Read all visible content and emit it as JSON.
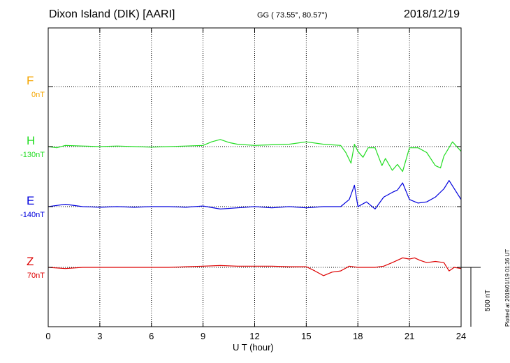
{
  "header": {
    "station": "Dixon Island (DIK)  [AARI]",
    "coords": "GG ( 73.55°,  80.57°)",
    "date": "2018/12/19"
  },
  "footer": {
    "xlabel": "U T (hour)",
    "plotted": "Plotted at 2019/01/19 01:36 UT",
    "scale_label": "500 nT"
  },
  "chart_data": {
    "type": "line",
    "xlabel": "U T (hour)",
    "xlim": [
      0,
      24
    ],
    "xticks": [
      0,
      3,
      6,
      9,
      12,
      15,
      18,
      21,
      24
    ],
    "xtick_labels": [
      "0",
      "3",
      "6",
      "9",
      "12",
      "15",
      "18",
      "21",
      "24"
    ],
    "scale_bar_nT": 500,
    "grid": true,
    "series": [
      {
        "name": "F",
        "baseline": "0nT",
        "color": "#f5a500",
        "x": [],
        "values": []
      },
      {
        "name": "H",
        "baseline": "-130nT",
        "color": "#22dd22",
        "x": [
          0,
          0.5,
          1,
          2,
          3,
          4,
          5,
          6,
          7,
          8,
          9,
          9.5,
          10,
          10.5,
          11,
          12,
          13,
          14,
          15,
          16,
          17,
          17.3,
          17.6,
          17.8,
          18,
          18.3,
          18.6,
          19,
          19.4,
          19.6,
          20,
          20.3,
          20.6,
          21,
          21.5,
          22,
          22.5,
          22.8,
          23,
          23.5,
          24
        ],
        "values": [
          0,
          -10,
          10,
          5,
          0,
          5,
          0,
          -5,
          0,
          5,
          10,
          40,
          60,
          35,
          20,
          10,
          15,
          20,
          40,
          20,
          10,
          -50,
          -140,
          20,
          -40,
          -90,
          -10,
          -10,
          -160,
          -100,
          -200,
          -150,
          -210,
          -10,
          -10,
          -50,
          -160,
          -180,
          -80,
          40,
          -40
        ]
      },
      {
        "name": "E",
        "baseline": "-140nT",
        "color": "#0000dd",
        "x": [
          0,
          0.5,
          1,
          2,
          3,
          4,
          5,
          6,
          7,
          8,
          9,
          10,
          11,
          12,
          13,
          14,
          15,
          16,
          17,
          17.5,
          17.8,
          18,
          18.5,
          19,
          19.5,
          20,
          20.3,
          20.6,
          21,
          21.5,
          22,
          22.5,
          23,
          23.3,
          24
        ],
        "values": [
          0,
          10,
          20,
          0,
          -5,
          0,
          -5,
          0,
          0,
          -5,
          5,
          -20,
          -10,
          0,
          -10,
          0,
          -10,
          0,
          0,
          60,
          180,
          0,
          40,
          -20,
          80,
          120,
          140,
          200,
          60,
          30,
          40,
          80,
          150,
          220,
          60
        ]
      },
      {
        "name": "Z",
        "baseline": "70nT",
        "color": "#dd0000",
        "x": [
          0,
          1,
          2,
          3,
          4,
          5,
          6,
          7,
          8,
          9,
          10,
          11,
          12,
          13,
          14,
          15,
          15.5,
          16,
          16.5,
          17,
          17.5,
          18,
          18.5,
          19,
          19.5,
          20,
          20.3,
          20.6,
          21,
          21.3,
          21.6,
          22,
          22.5,
          23,
          23.3,
          23.6,
          24
        ],
        "values": [
          0,
          -10,
          0,
          0,
          0,
          0,
          0,
          0,
          5,
          10,
          15,
          10,
          10,
          10,
          5,
          5,
          -30,
          -70,
          -40,
          -30,
          10,
          0,
          0,
          0,
          10,
          40,
          60,
          80,
          70,
          80,
          60,
          40,
          50,
          40,
          -30,
          0,
          -10
        ]
      }
    ]
  }
}
